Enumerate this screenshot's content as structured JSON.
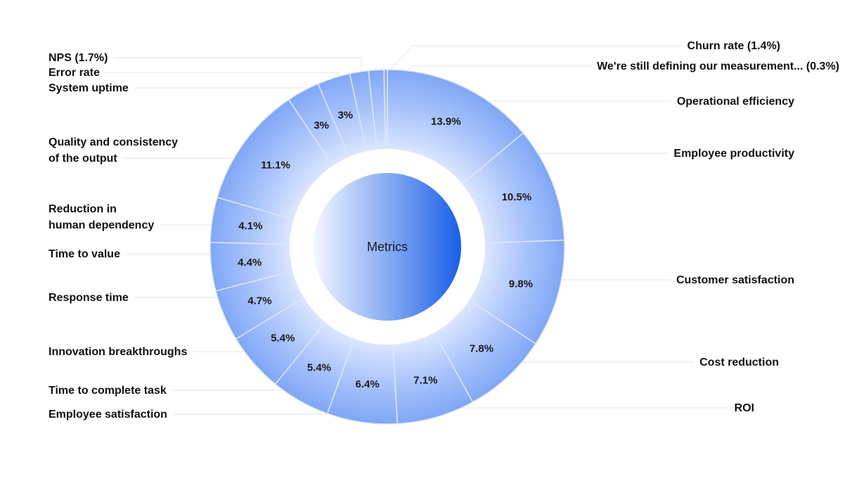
{
  "chart_data": {
    "type": "pie",
    "center_label": "Metrics",
    "slices": [
      {
        "value": 13.9,
        "pct_label": "13.9%",
        "label": [
          "Operational efficiency"
        ]
      },
      {
        "value": 10.5,
        "pct_label": "10.5%",
        "label": [
          "Employee productivity"
        ]
      },
      {
        "value": 9.8,
        "pct_label": "9.8%",
        "label": [
          "Customer satisfaction"
        ]
      },
      {
        "value": 7.8,
        "pct_label": "7.8%",
        "label": [
          "Cost reduction"
        ]
      },
      {
        "value": 7.1,
        "pct_label": "7.1%",
        "label": [
          "ROI"
        ]
      },
      {
        "value": 6.4,
        "pct_label": "6.4%",
        "label": [
          "Employee satisfaction"
        ]
      },
      {
        "value": 5.4,
        "pct_label": "5.4%",
        "label": [
          "Time to complete task"
        ]
      },
      {
        "value": 5.4,
        "pct_label": "5.4%",
        "label": [
          "Innovation breakthroughs"
        ]
      },
      {
        "value": 4.7,
        "pct_label": "4.7%",
        "label": [
          "Response time"
        ]
      },
      {
        "value": 4.4,
        "pct_label": "4.4%",
        "label": [
          "Time to value"
        ]
      },
      {
        "value": 4.1,
        "pct_label": "4.1%",
        "label": [
          "Reduction in",
          "human dependency"
        ]
      },
      {
        "value": 11.1,
        "pct_label": "11.1%",
        "label": [
          "Quality and consistency",
          "of the output"
        ]
      },
      {
        "value": 3.0,
        "pct_label": "3%",
        "label": [
          "System uptime"
        ]
      },
      {
        "value": 3.0,
        "pct_label": "3%",
        "label": [
          "Error rate"
        ]
      },
      {
        "value": 1.7,
        "pct_label": "",
        "label": [
          "NPS (1.7%)"
        ]
      },
      {
        "value": 1.4,
        "pct_label": "",
        "label": [
          "Churn rate (1.4%)"
        ]
      },
      {
        "value": 0.3,
        "pct_label": "",
        "label": [
          "We're still defining our measurement... (0.3%)"
        ]
      }
    ],
    "legend": "none",
    "colors": {
      "ring_light": "#dbe6ff",
      "ring_mid": "#a9c3fb",
      "ring_dark": "#80a7f6",
      "center_light": "#f4f7ff",
      "center_dark": "#1a5fe8"
    }
  }
}
